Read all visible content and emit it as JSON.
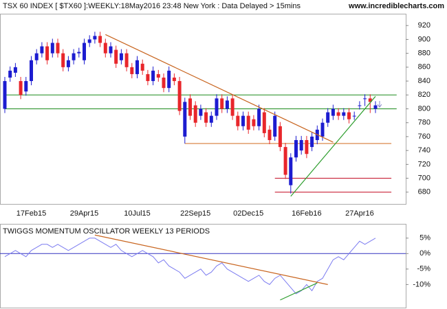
{
  "header": {
    "title": "TSX 60 INDEX [ $TX60 ]:WEEKLY:18May2016 23:48 New York : Data Delayed > 15mins",
    "site": "www.incrediblecharts.com"
  },
  "chart_data": [
    {
      "type": "candlestick",
      "categories": [
        null,
        null,
        null,
        null,
        null,
        "17Feb15",
        null,
        null,
        null,
        null,
        null,
        null,
        null,
        null,
        null,
        "29Apr15",
        null,
        null,
        null,
        null,
        null,
        null,
        null,
        null,
        null,
        "10Jul15",
        null,
        null,
        null,
        null,
        null,
        null,
        null,
        null,
        null,
        null,
        "22Sep15",
        null,
        null,
        null,
        null,
        null,
        null,
        null,
        null,
        null,
        "02Dec15",
        null,
        null,
        null,
        null,
        null,
        null,
        null,
        null,
        null,
        null,
        "16Feb16",
        null,
        null,
        null,
        null,
        null,
        null,
        null,
        null,
        null,
        "27Apr16",
        null,
        null,
        null
      ],
      "open": [
        800,
        845,
        852,
        840,
        825,
        840,
        870,
        880,
        890,
        880,
        895,
        880,
        860,
        870,
        880,
        870,
        895,
        900,
        905,
        895,
        880,
        885,
        870,
        880,
        860,
        850,
        865,
        850,
        840,
        850,
        845,
        830,
        845,
        840,
        760,
        815,
        805,
        790,
        795,
        780,
        790,
        815,
        800,
        815,
        790,
        775,
        790,
        785,
        775,
        795,
        770,
        760,
        775,
        745,
        690,
        730,
        740,
        755,
        745,
        755,
        760,
        780,
        790,
        795,
        790,
        795,
        790,
        805,
        815,
        815,
        800
      ],
      "high": [
        846,
        861,
        866,
        846,
        846,
        876,
        886,
        896,
        896,
        901,
        901,
        886,
        876,
        886,
        888,
        901,
        906,
        911,
        911,
        901,
        896,
        891,
        886,
        886,
        866,
        876,
        871,
        856,
        861,
        856,
        851,
        861,
        851,
        846,
        816,
        821,
        811,
        806,
        801,
        796,
        821,
        821,
        818,
        821,
        796,
        796,
        796,
        791,
        806,
        801,
        776,
        796,
        781,
        751,
        736,
        761,
        761,
        761,
        766,
        776,
        786,
        801,
        806,
        801,
        801,
        801,
        796,
        811,
        821,
        821,
        811
      ],
      "low": [
        794,
        839,
        846,
        814,
        819,
        834,
        864,
        874,
        864,
        874,
        874,
        854,
        854,
        864,
        874,
        864,
        889,
        894,
        889,
        874,
        874,
        859,
        864,
        854,
        844,
        844,
        849,
        834,
        834,
        839,
        824,
        824,
        834,
        791,
        750,
        784,
        774,
        784,
        774,
        774,
        784,
        794,
        794,
        784,
        769,
        769,
        764,
        769,
        769,
        759,
        749,
        754,
        739,
        699,
        678,
        724,
        734,
        729,
        739,
        749,
        754,
        774,
        784,
        784,
        784,
        779,
        784,
        799,
        804,
        794,
        794
      ],
      "close": [
        840,
        855,
        860,
        820,
        840,
        870,
        880,
        890,
        870,
        895,
        880,
        860,
        870,
        880,
        882,
        895,
        900,
        905,
        895,
        880,
        890,
        865,
        880,
        860,
        850,
        870,
        855,
        840,
        855,
        845,
        830,
        855,
        840,
        797,
        810,
        790,
        780,
        800,
        780,
        790,
        815,
        800,
        812,
        790,
        775,
        790,
        770,
        775,
        800,
        765,
        755,
        790,
        745,
        705,
        730,
        755,
        755,
        735,
        760,
        770,
        780,
        795,
        800,
        790,
        795,
        785,
        790,
        805,
        815,
        810,
        805
      ],
      "up_color": "#1c1cd0",
      "down_color": "#e8262b",
      "ylim": [
        663,
        937
      ],
      "yticks": [
        680,
        700,
        720,
        740,
        760,
        780,
        800,
        820,
        840,
        860,
        880,
        900,
        920
      ],
      "levels": [
        {
          "value": 820,
          "from": 0,
          "to": 74,
          "color": "#1a8a1a"
        },
        {
          "value": 800,
          "from": 0,
          "to": 74,
          "color": "#1a8a1a"
        },
        {
          "value": 750,
          "from": 34,
          "to": 73,
          "color": "#d2691e"
        },
        {
          "value": 700,
          "from": 51,
          "to": 73,
          "color": "#c0001a"
        },
        {
          "value": 680,
          "from": 51,
          "to": 73,
          "color": "#c0001a"
        }
      ],
      "trendlines": [
        {
          "start": [
            19,
            907
          ],
          "end": [
            62,
            752
          ],
          "color": "#c8641e"
        },
        {
          "start": [
            54,
            674
          ],
          "end": [
            70,
            818
          ],
          "color": "#2e9e2e"
        }
      ]
    },
    {
      "type": "line",
      "title": "TWIGGS MOMENTUM OSCILLATOR WEEKLY 13 PERIODS",
      "values": [
        -1,
        0,
        1,
        0,
        -1,
        1,
        2,
        3,
        3,
        2,
        3,
        2,
        1,
        2,
        3,
        4,
        5,
        5,
        4,
        3,
        2,
        3,
        1,
        0,
        -1,
        0,
        1,
        0,
        -1,
        -3,
        -2,
        -4,
        -5,
        -6,
        -8,
        -7,
        -6,
        -5,
        -7,
        -6,
        -4,
        -3,
        -5,
        -6,
        -7,
        -8,
        -9,
        -8,
        -7,
        -9,
        -10,
        -8,
        -7,
        -9,
        -11,
        -13,
        -12,
        -10,
        -12,
        -9,
        -8,
        -5,
        -2,
        -1,
        -2,
        0,
        2,
        4,
        3,
        4,
        5
      ],
      "color": "#7b7bf0",
      "zero_line_color": "#3030c0",
      "ylim": [
        -16.8,
        6.5
      ],
      "yticks": [
        {
          "value": 5,
          "label": "5%"
        },
        {
          "value": 0,
          "label": "0%"
        },
        {
          "value": -5,
          "label": "-5%"
        },
        {
          "value": -10,
          "label": "-10%"
        }
      ],
      "trendlines": [
        {
          "start": [
            17,
            6
          ],
          "end": [
            61,
            -10
          ],
          "color": "#c8641e"
        },
        {
          "start": [
            52,
            -15
          ],
          "end": [
            59,
            -9.5
          ],
          "color": "#2e9e2e"
        }
      ]
    }
  ]
}
